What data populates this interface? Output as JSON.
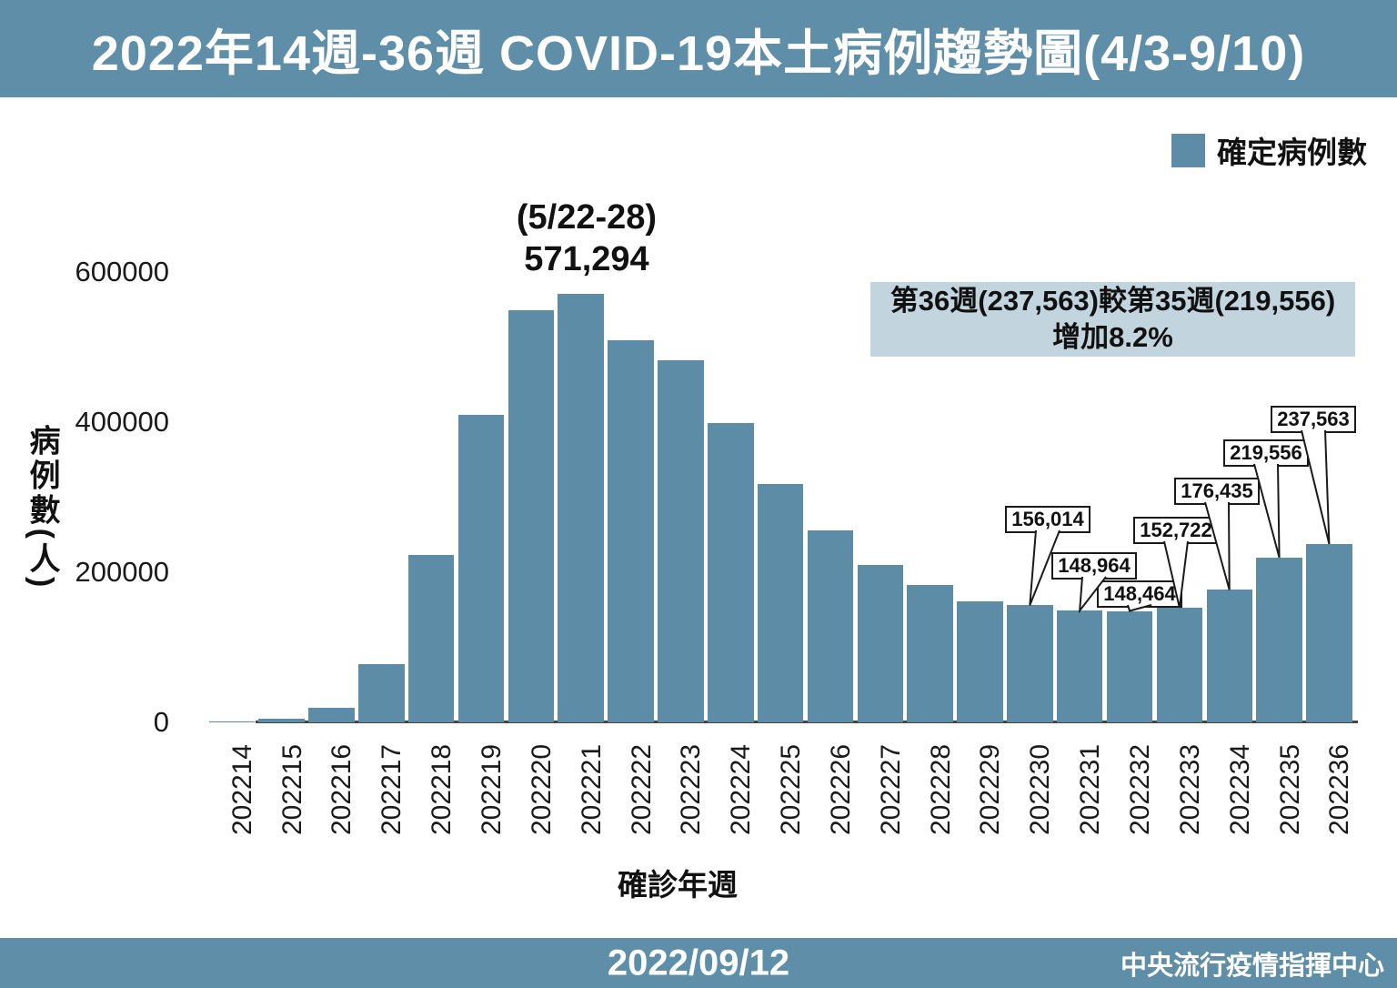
{
  "title": "2022年14週-36週 COVID-19本土病例趨勢圖(4/3-9/10)",
  "legend": {
    "label": "確定病例數",
    "color": "#5d8ca7"
  },
  "comparison_box": {
    "line1": "第36週(237,563)較第35週(219,556)",
    "line2": "增加8.2%",
    "bg_color": "#c2d5de"
  },
  "footer": {
    "date": "2022/09/12",
    "org": "中央流行疫情指揮中心"
  },
  "chart_data": {
    "type": "bar",
    "title": "2022年14週-36週 COVID-19本土病例趨勢圖(4/3-9/10)",
    "xlabel": "確診年週",
    "ylabel": "病例數(人)",
    "ylim": [
      0,
      600000
    ],
    "yticks": [
      0,
      200000,
      400000,
      600000
    ],
    "grid": false,
    "legend_position": "top-right",
    "bar_color": "#5d8ca7",
    "categories": [
      "202214",
      "202215",
      "202216",
      "202217",
      "202218",
      "202219",
      "202220",
      "202221",
      "202222",
      "202223",
      "202224",
      "202225",
      "202226",
      "202227",
      "202228",
      "202229",
      "202230",
      "202231",
      "202232",
      "202233",
      "202234",
      "202235",
      "202236"
    ],
    "values": [
      1800,
      4500,
      20000,
      78000,
      223000,
      410000,
      549000,
      571294,
      509000,
      482000,
      399000,
      317000,
      256000,
      210000,
      183000,
      161000,
      156014,
      148964,
      148464,
      152722,
      176435,
      219556,
      237563
    ],
    "peak": {
      "week": "202221",
      "range": "(5/22-28)",
      "label": "571,294"
    },
    "callouts": [
      {
        "week": "202230",
        "label": "156,014"
      },
      {
        "week": "202231",
        "label": "148,964"
      },
      {
        "week": "202232",
        "label": "148,464"
      },
      {
        "week": "202233",
        "label": "152,722"
      },
      {
        "week": "202234",
        "label": "176,435"
      },
      {
        "week": "202235",
        "label": "219,556"
      },
      {
        "week": "202236",
        "label": "237,563"
      }
    ]
  }
}
